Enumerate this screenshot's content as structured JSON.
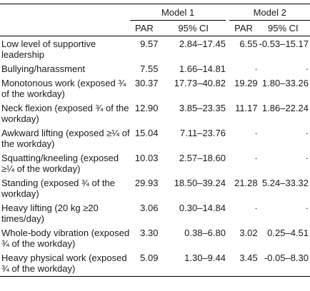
{
  "header": {
    "model1": "Model 1",
    "model2": "Model 2",
    "par1": "PAR",
    "ci1": "95% CI",
    "par2": "PAR",
    "ci2": "95% CI"
  },
  "rows": [
    {
      "label": "Low level of supportive leadership",
      "par1": "9.57",
      "ci1": "2.84–17.45",
      "par2": "6.55",
      "ci2": "-0.53–15.17"
    },
    {
      "label": "Bullying/harassment",
      "par1": "7.55",
      "ci1": "1.66–14.81",
      "par2": "·",
      "ci2": "·"
    },
    {
      "label": "Monotonous work (exposed ¾ of the workday)",
      "par1": "30.37",
      "ci1": "17.73–40.82",
      "par2": "19.29",
      "ci2": "1.80–33.26"
    },
    {
      "label": "Neck flexion (exposed ¾ of the workday)",
      "par1": "12.90",
      "ci1": "3.85–23.35",
      "par2": "11.17",
      "ci2": "1.86–22.24"
    },
    {
      "label": "Awkward lifting (exposed ≥¼ of the workday)",
      "par1": "15.04",
      "ci1": "7.11–23.76",
      "par2": "·",
      "ci2": "·"
    },
    {
      "label": "Squatting/kneeling (exposed ≥¼ of the workday)",
      "par1": "10.03",
      "ci1": "2.57–18.60",
      "par2": "·",
      "ci2": "·"
    },
    {
      "label": "Standing (exposed ¾ of the workday)",
      "par1": "29.93",
      "ci1": "18.50–39.24",
      "par2": "21.28",
      "ci2": "5.24–33.32"
    },
    {
      "label": "Heavy lifting (20 kg ≥20 times/day)",
      "par1": "3.06",
      "ci1": "0.30–14.84",
      "par2": "·",
      "ci2": "·"
    },
    {
      "label": "Whole-body vibration (exposed ¾ of the workday)",
      "par1": "3.30",
      "ci1": "0.38–6.80",
      "par2": "3.02",
      "ci2": "0.25–4.51"
    },
    {
      "label": "Heavy physical work (exposed ¾ of the workday)",
      "par1": "5.09",
      "ci1": "1.30–9.44",
      "par2": "3.45",
      "ci2": "-0.05–8.30"
    }
  ]
}
